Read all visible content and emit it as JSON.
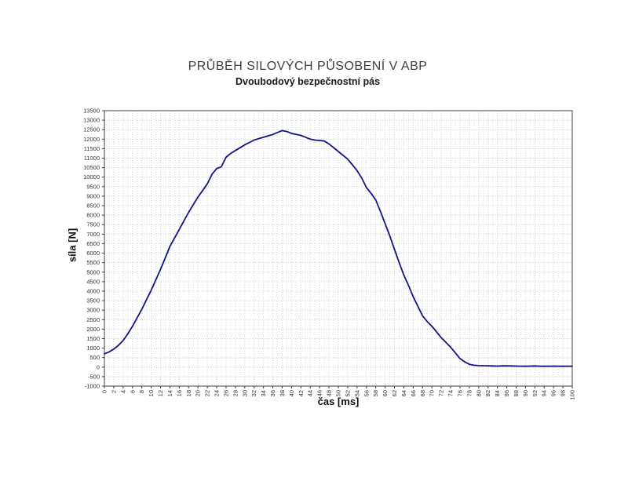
{
  "chart_data": {
    "type": "line",
    "title": "PRŮBĚH SILOVÝCH PŮSOBENÍ V ABP",
    "subtitle": "Dvoubodový bezpečnostní pás",
    "xlabel": "čas [ms]",
    "ylabel": "síla [N]",
    "xlim": [
      0,
      100
    ],
    "ylim": [
      -1000,
      13500
    ],
    "x_tick_step": 2,
    "x_minor_step": 1,
    "y_tick_step": 500,
    "grid": true,
    "legend": false,
    "colors": {
      "line": "#12128a",
      "grid_major": "#cccccc",
      "grid_minor": "#e4e4e4",
      "frame": "#3c3c3c",
      "tick_text": "#333333"
    },
    "series": [
      {
        "name": "síla",
        "points": [
          [
            0,
            700
          ],
          [
            1,
            800
          ],
          [
            2,
            950
          ],
          [
            3,
            1150
          ],
          [
            4,
            1400
          ],
          [
            5,
            1750
          ],
          [
            6,
            2150
          ],
          [
            7,
            2600
          ],
          [
            8,
            3050
          ],
          [
            9,
            3550
          ],
          [
            10,
            4050
          ],
          [
            11,
            4600
          ],
          [
            12,
            5150
          ],
          [
            13,
            5750
          ],
          [
            14,
            6350
          ],
          [
            15,
            6800
          ],
          [
            16,
            7250
          ],
          [
            17,
            7700
          ],
          [
            18,
            8150
          ],
          [
            19,
            8550
          ],
          [
            20,
            8950
          ],
          [
            21,
            9300
          ],
          [
            22,
            9650
          ],
          [
            23,
            10150
          ],
          [
            24,
            10450
          ],
          [
            25,
            10550
          ],
          [
            26,
            11050
          ],
          [
            27,
            11250
          ],
          [
            28,
            11400
          ],
          [
            29,
            11550
          ],
          [
            30,
            11700
          ],
          [
            31,
            11825
          ],
          [
            32,
            11950
          ],
          [
            33,
            12030
          ],
          [
            34,
            12100
          ],
          [
            35,
            12175
          ],
          [
            36,
            12250
          ],
          [
            37,
            12350
          ],
          [
            38,
            12450
          ],
          [
            39,
            12400
          ],
          [
            40,
            12300
          ],
          [
            41,
            12250
          ],
          [
            42,
            12200
          ],
          [
            43,
            12100
          ],
          [
            44,
            12000
          ],
          [
            45,
            11950
          ],
          [
            46,
            11930
          ],
          [
            47,
            11900
          ],
          [
            48,
            11750
          ],
          [
            49,
            11550
          ],
          [
            50,
            11350
          ],
          [
            51,
            11150
          ],
          [
            52,
            10950
          ],
          [
            53,
            10650
          ],
          [
            54,
            10350
          ],
          [
            55,
            9950
          ],
          [
            56,
            9450
          ],
          [
            57,
            9150
          ],
          [
            58,
            8800
          ],
          [
            59,
            8200
          ],
          [
            60,
            7550
          ],
          [
            61,
            6900
          ],
          [
            62,
            6200
          ],
          [
            63,
            5500
          ],
          [
            64,
            4850
          ],
          [
            65,
            4300
          ],
          [
            66,
            3700
          ],
          [
            67,
            3200
          ],
          [
            68,
            2700
          ],
          [
            69,
            2400
          ],
          [
            70,
            2150
          ],
          [
            71,
            1850
          ],
          [
            72,
            1550
          ],
          [
            73,
            1300
          ],
          [
            74,
            1050
          ],
          [
            75,
            750
          ],
          [
            76,
            450
          ],
          [
            77,
            280
          ],
          [
            78,
            150
          ],
          [
            79,
            100
          ],
          [
            80,
            80
          ],
          [
            81,
            75
          ],
          [
            82,
            70
          ],
          [
            83,
            60
          ],
          [
            84,
            55
          ],
          [
            85,
            65
          ],
          [
            86,
            70
          ],
          [
            87,
            60
          ],
          [
            88,
            55
          ],
          [
            89,
            50
          ],
          [
            90,
            45
          ],
          [
            91,
            55
          ],
          [
            92,
            60
          ],
          [
            93,
            50
          ],
          [
            94,
            45
          ],
          [
            95,
            50
          ],
          [
            96,
            55
          ],
          [
            97,
            50
          ],
          [
            98,
            45
          ],
          [
            99,
            50
          ],
          [
            100,
            50
          ]
        ]
      }
    ]
  }
}
